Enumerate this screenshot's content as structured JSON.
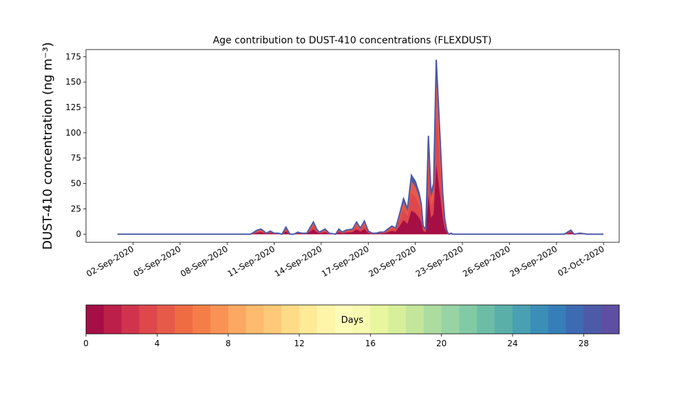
{
  "chart_data": {
    "type": "area",
    "title": "Age contribution to DUST-410 concentrations (FLEXDUST)",
    "xlabel": "",
    "ylabel": "DUST-410 concentration (ng m⁻³)",
    "xlim": [
      "2020-08-30",
      "2020-10-03"
    ],
    "ylim": [
      -8,
      182
    ],
    "yticks": [
      0,
      25,
      50,
      75,
      100,
      125,
      150,
      175
    ],
    "xtick_labels": [
      "02-Sep-2020",
      "05-Sep-2020",
      "08-Sep-2020",
      "11-Sep-2020",
      "14-Sep-2020",
      "17-Sep-2020",
      "20-Sep-2020",
      "23-Sep-2020",
      "26-Sep-2020",
      "29-Sep-2020",
      "02-Oct-2020"
    ],
    "xtick_dates": [
      "2020-09-02",
      "2020-09-05",
      "2020-09-08",
      "2020-09-11",
      "2020-09-14",
      "2020-09-17",
      "2020-09-20",
      "2020-09-23",
      "2020-09-26",
      "2020-09-29",
      "2020-10-02"
    ],
    "grid": false,
    "total_series": {
      "x": [
        "2020-09-01T00:00",
        "2020-09-09T12:00",
        "2020-09-09T22:00",
        "2020-09-10T04:00",
        "2020-09-10T12:00",
        "2020-09-10T18:00",
        "2020-09-11T00:00",
        "2020-09-11T06:00",
        "2020-09-11T12:00",
        "2020-09-11T18:00",
        "2020-09-12T00:00",
        "2020-09-12T06:00",
        "2020-09-12T12:00",
        "2020-09-12T18:00",
        "2020-09-13T02:00",
        "2020-09-13T12:00",
        "2020-09-13T17:00",
        "2020-09-13T21:00",
        "2020-09-14T06:00",
        "2020-09-14T12:00",
        "2020-09-14T22:00",
        "2020-09-15T03:00",
        "2020-09-15T08:00",
        "2020-09-15T14:00",
        "2020-09-16T00:00",
        "2020-09-16T06:00",
        "2020-09-16T12:00",
        "2020-09-16T18:00",
        "2020-09-17T00:00",
        "2020-09-17T06:00",
        "2020-09-17T12:00",
        "2020-09-17T18:00",
        "2020-09-18T00:00",
        "2020-09-18T06:00",
        "2020-09-18T12:00",
        "2020-09-18T18:00",
        "2020-09-19T00:00",
        "2020-09-19T06:00",
        "2020-09-19T12:00",
        "2020-09-19T18:00",
        "2020-09-20T00:00",
        "2020-09-20T06:00",
        "2020-09-20T09:00",
        "2020-09-20T12:00",
        "2020-09-20T16:00",
        "2020-09-20T20:00",
        "2020-09-21T00:00",
        "2020-09-21T04:00",
        "2020-09-21T08:00",
        "2020-09-21T12:00",
        "2020-09-21T15:00",
        "2020-09-21T18:00",
        "2020-09-21T21:00",
        "2020-09-22T00:00",
        "2020-09-22T02:00",
        "2020-09-22T04:00",
        "2020-09-22T07:00",
        "2020-09-22T09:00",
        "2020-09-22T12:00",
        "2020-09-22T14:00",
        "2020-09-22T16:00",
        "2020-09-22T18:00",
        "2020-09-22T20:00",
        "2020-09-23T00:00",
        "2020-09-23T04:00",
        "2020-09-23T08:00",
        "2020-09-23T14:00",
        "2020-09-24T00:00",
        "2020-09-25T00:00",
        "2020-09-26T00:00",
        "2020-09-27T00:00",
        "2020-09-28T00:00",
        "2020-09-29T12:00",
        "2020-09-29T22:00",
        "2020-09-30T03:00",
        "2020-09-30T12:00",
        "2020-10-01T00:00",
        "2020-10-02T00:00"
      ],
      "y": [
        0,
        0,
        4,
        5,
        1,
        3,
        1,
        1,
        0,
        7,
        0,
        0,
        2,
        1,
        1,
        12,
        5,
        2,
        5,
        1,
        0,
        5,
        2,
        4,
        5,
        12,
        6,
        13,
        3,
        1,
        1,
        2,
        2,
        5,
        8,
        6,
        20,
        35,
        25,
        58,
        52,
        40,
        30,
        8,
        5,
        97,
        40,
        50,
        172,
        120,
        80,
        40,
        15,
        4,
        1,
        0,
        1,
        0,
        0,
        0,
        0,
        0,
        0,
        0,
        0,
        0,
        0,
        0,
        0,
        0,
        0,
        0,
        0,
        4,
        0,
        1,
        0,
        0
      ]
    },
    "colorbar": {
      "label": "Days",
      "min": 0,
      "max": 30,
      "bins": 30,
      "ticks": [
        0,
        4,
        8,
        12,
        16,
        20,
        24,
        28
      ],
      "colors": [
        "#a50f45",
        "#bc2049",
        "#cf344c",
        "#de474b",
        "#e65a49",
        "#ef6c43",
        "#f57e48",
        "#f99254",
        "#fca862",
        "#fdbb6d",
        "#fec978",
        "#fedb87",
        "#feea97",
        "#fff5a8",
        "#fdfbb8",
        "#f5fab0",
        "#e8f69f",
        "#d8ef9a",
        "#c3e69b",
        "#acdc9f",
        "#97d3a3",
        "#82caa5",
        "#6cbda6",
        "#5aafab",
        "#49a0b2",
        "#3b8fb7",
        "#367eb9",
        "#3d6ab1",
        "#4c5aa8",
        "#5e4fa2"
      ]
    },
    "band_colors": [
      "#4c5aa8",
      "#e65a49",
      "#de474b",
      "#a50f45"
    ],
    "band_fractions": [
      1.0,
      0.9,
      0.7,
      0.4
    ]
  }
}
